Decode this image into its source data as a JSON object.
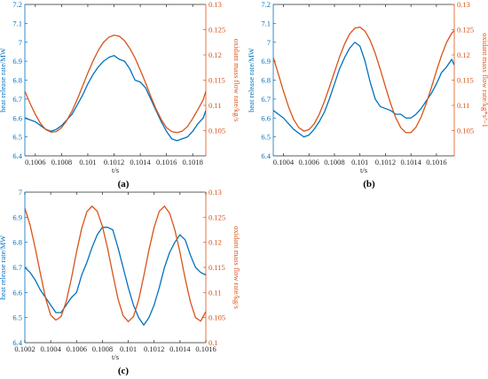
{
  "colors": {
    "left_axis": "#0072BD",
    "right_axis": "#D95319",
    "frame": "#262626"
  },
  "chart_data": [
    {
      "type": "line",
      "panel_label": "(a)",
      "xlabel": "t/s",
      "ylabel_left": "heat release rate/MW",
      "ylabel_right": "oxidant mass flow rate/kg/s",
      "xlim": [
        0.10052,
        0.1019
      ],
      "ylim_left": [
        6.4,
        7.2
      ],
      "ylim_right": [
        0.1,
        0.13
      ],
      "xticks": [
        "0.1006",
        "0.1008",
        "0.101",
        "0.1012",
        "0.1014",
        "0.1016",
        "0.1018"
      ],
      "yticks_left": [
        "6.4",
        "6.5",
        "6.6",
        "6.7",
        "6.8",
        "6.9",
        "7",
        "7.1",
        "7.2"
      ],
      "yticks_right": [
        "0.105",
        "0.11",
        "0.115",
        "0.12",
        "0.125",
        "0.13"
      ],
      "grid": false,
      "series": [
        {
          "axis": "left",
          "color": "#0072BD",
          "x": [
            0.10052,
            0.10056,
            0.1006,
            0.10064,
            0.10068,
            0.10072,
            0.10076,
            0.1008,
            0.10084,
            0.10088,
            0.10092,
            0.10096,
            0.101,
            0.10104,
            0.10108,
            0.10112,
            0.10116,
            0.1012,
            0.10124,
            0.10128,
            0.10132,
            0.10136,
            0.1014,
            0.10144,
            0.10148,
            0.10152,
            0.10156,
            0.1016,
            0.10164,
            0.10168,
            0.10172,
            0.10176,
            0.1018,
            0.10184,
            0.10188,
            0.1019
          ],
          "y": [
            6.6,
            6.59,
            6.58,
            6.56,
            6.54,
            6.53,
            6.54,
            6.56,
            6.59,
            6.62,
            6.67,
            6.72,
            6.78,
            6.83,
            6.87,
            6.9,
            6.92,
            6.93,
            6.91,
            6.9,
            6.86,
            6.8,
            6.79,
            6.76,
            6.7,
            6.64,
            6.58,
            6.53,
            6.49,
            6.48,
            6.49,
            6.5,
            6.53,
            6.57,
            6.6,
            6.64
          ]
        },
        {
          "axis": "right",
          "color": "#D95319",
          "x": [
            0.10052,
            0.10056,
            0.1006,
            0.10064,
            0.10068,
            0.10072,
            0.10076,
            0.1008,
            0.10084,
            0.10088,
            0.10092,
            0.10096,
            0.101,
            0.10104,
            0.10108,
            0.10112,
            0.10116,
            0.1012,
            0.10124,
            0.10128,
            0.10132,
            0.10136,
            0.1014,
            0.10144,
            0.10148,
            0.10152,
            0.10156,
            0.1016,
            0.10164,
            0.10168,
            0.10172,
            0.10176,
            0.1018,
            0.10184,
            0.10188,
            0.1019
          ],
          "y": [
            0.1128,
            0.1104,
            0.1082,
            0.1064,
            0.1052,
            0.1047,
            0.1048,
            0.1056,
            0.107,
            0.1089,
            0.1112,
            0.1138,
            0.1164,
            0.1188,
            0.1209,
            0.1225,
            0.1235,
            0.1239,
            0.1237,
            0.1228,
            0.1213,
            0.1194,
            0.117,
            0.1145,
            0.1118,
            0.1093,
            0.1072,
            0.1056,
            0.1048,
            0.1046,
            0.1049,
            0.1058,
            0.1074,
            0.1092,
            0.1111,
            0.1128
          ]
        }
      ]
    },
    {
      "type": "line",
      "panel_label": "(b)",
      "xlabel": "t/s",
      "ylabel_left": "heat release rate/MW",
      "ylabel_right": "oxidant mass flow rate/kg*s^-1",
      "xlim": [
        0.10032,
        0.10174
      ],
      "ylim_left": [
        6.4,
        7.2
      ],
      "ylim_right": [
        0.1,
        0.13
      ],
      "xticks": [
        "0.1004",
        "0.1006",
        "0.1008",
        "0.101",
        "0.1012",
        "0.1014",
        "0.1016"
      ],
      "yticks_left": [
        "6.4",
        "6.5",
        "6.6",
        "6.7",
        "6.8",
        "6.9",
        "7",
        "7.1",
        "7.2"
      ],
      "yticks_right": [
        "0.105",
        "0.11",
        "0.115",
        "0.12",
        "0.125",
        "0.13"
      ],
      "grid": false,
      "series": [
        {
          "axis": "left",
          "color": "#0072BD",
          "x": [
            0.10032,
            0.10036,
            0.1004,
            0.10044,
            0.10048,
            0.10052,
            0.10056,
            0.1006,
            0.10064,
            0.10068,
            0.10072,
            0.10076,
            0.1008,
            0.10084,
            0.10088,
            0.10092,
            0.10096,
            0.101,
            0.10104,
            0.10108,
            0.10112,
            0.10116,
            0.1012,
            0.10124,
            0.10128,
            0.10132,
            0.10136,
            0.1014,
            0.10144,
            0.10148,
            0.10152,
            0.10156,
            0.1016,
            0.10164,
            0.10168,
            0.10172,
            0.10174
          ],
          "y": [
            6.64,
            6.62,
            6.6,
            6.57,
            6.54,
            6.52,
            6.5,
            6.51,
            6.54,
            6.58,
            6.63,
            6.7,
            6.78,
            6.86,
            6.92,
            6.97,
            7.0,
            6.98,
            6.9,
            6.79,
            6.7,
            6.66,
            6.65,
            6.64,
            6.62,
            6.62,
            6.6,
            6.6,
            6.62,
            6.65,
            6.69,
            6.73,
            6.78,
            6.84,
            6.87,
            6.91,
            6.88
          ]
        },
        {
          "axis": "right",
          "color": "#D95319",
          "x": [
            0.10032,
            0.10036,
            0.1004,
            0.10044,
            0.10048,
            0.10052,
            0.10056,
            0.1006,
            0.10064,
            0.10068,
            0.10072,
            0.10076,
            0.1008,
            0.10084,
            0.10088,
            0.10092,
            0.10096,
            0.101,
            0.10104,
            0.10108,
            0.10112,
            0.10116,
            0.1012,
            0.10124,
            0.10128,
            0.10132,
            0.10136,
            0.1014,
            0.10144,
            0.10148,
            0.10152,
            0.10156,
            0.1016,
            0.10164,
            0.10168,
            0.10172,
            0.10174
          ],
          "y": [
            0.1195,
            0.1162,
            0.1128,
            0.1097,
            0.1072,
            0.1056,
            0.1049,
            0.1052,
            0.1063,
            0.1082,
            0.1107,
            0.1136,
            0.1166,
            0.1196,
            0.1222,
            0.1242,
            0.1253,
            0.1255,
            0.1247,
            0.1229,
            0.1203,
            0.1171,
            0.1137,
            0.1104,
            0.1076,
            0.1056,
            0.1046,
            0.1046,
            0.1057,
            0.1077,
            0.1104,
            0.1135,
            0.1168,
            0.1199,
            0.1225,
            0.1243,
            0.1248
          ]
        }
      ]
    },
    {
      "type": "line",
      "panel_label": "(c)",
      "xlabel": "t/s",
      "ylabel_left": "heat release rate/MW",
      "ylabel_right": "oxidant mass flow rate/kg/s",
      "xlim": [
        0.1002,
        0.1016
      ],
      "ylim_left": [
        6.4,
        7.0
      ],
      "ylim_right": [
        0.1,
        0.13
      ],
      "xticks": [
        "0.1002",
        "0.1004",
        "0.1006",
        "0.1008",
        "0.101",
        "0.1012",
        "0.1014",
        "0.1016"
      ],
      "yticks_left": [
        "6.4",
        "6.5",
        "6.6",
        "6.7",
        "6.8",
        "6.9",
        "7"
      ],
      "yticks_right": [
        "0.1",
        "0.105",
        "0.11",
        "0.115",
        "0.12",
        "0.125",
        "0.13"
      ],
      "grid": false,
      "series": [
        {
          "axis": "left",
          "color": "#0072BD",
          "x": [
            0.1002,
            0.10024,
            0.10028,
            0.10032,
            0.10036,
            0.1004,
            0.10044,
            0.10048,
            0.10052,
            0.10056,
            0.1006,
            0.10064,
            0.10068,
            0.10072,
            0.10076,
            0.1008,
            0.10084,
            0.10088,
            0.10092,
            0.10096,
            0.101,
            0.10104,
            0.10108,
            0.10112,
            0.10116,
            0.1012,
            0.10124,
            0.10128,
            0.10132,
            0.10136,
            0.1014,
            0.10144,
            0.10148,
            0.10152,
            0.10156,
            0.1016
          ],
          "y": [
            6.7,
            6.68,
            6.65,
            6.61,
            6.58,
            6.55,
            6.52,
            6.52,
            6.55,
            6.58,
            6.6,
            6.67,
            6.72,
            6.78,
            6.83,
            6.86,
            6.86,
            6.85,
            6.78,
            6.7,
            6.62,
            6.55,
            6.5,
            6.47,
            6.5,
            6.55,
            6.62,
            6.7,
            6.76,
            6.8,
            6.83,
            6.81,
            6.75,
            6.7,
            6.68,
            6.67
          ]
        },
        {
          "axis": "right",
          "color": "#D95319",
          "x": [
            0.1002,
            0.10024,
            0.10028,
            0.10032,
            0.10036,
            0.1004,
            0.10044,
            0.10048,
            0.10052,
            0.10056,
            0.1006,
            0.10064,
            0.10068,
            0.10072,
            0.10076,
            0.1008,
            0.10084,
            0.10088,
            0.10092,
            0.10096,
            0.101,
            0.10104,
            0.10108,
            0.10112,
            0.10116,
            0.1012,
            0.10124,
            0.10128,
            0.10132,
            0.10136,
            0.1014,
            0.10144,
            0.10148,
            0.10152,
            0.10156,
            0.1016
          ],
          "y": [
            0.1268,
            0.1235,
            0.1189,
            0.1138,
            0.1089,
            0.1055,
            0.1045,
            0.1052,
            0.1082,
            0.1128,
            0.1181,
            0.1228,
            0.1261,
            0.1272,
            0.1262,
            0.1232,
            0.1188,
            0.1137,
            0.1088,
            0.1054,
            0.1042,
            0.1052,
            0.1085,
            0.1133,
            0.1185,
            0.123,
            0.1262,
            0.1272,
            0.1258,
            0.1225,
            0.118,
            0.1128,
            0.1082,
            0.105,
            0.1043,
            0.1062
          ]
        }
      ]
    }
  ]
}
